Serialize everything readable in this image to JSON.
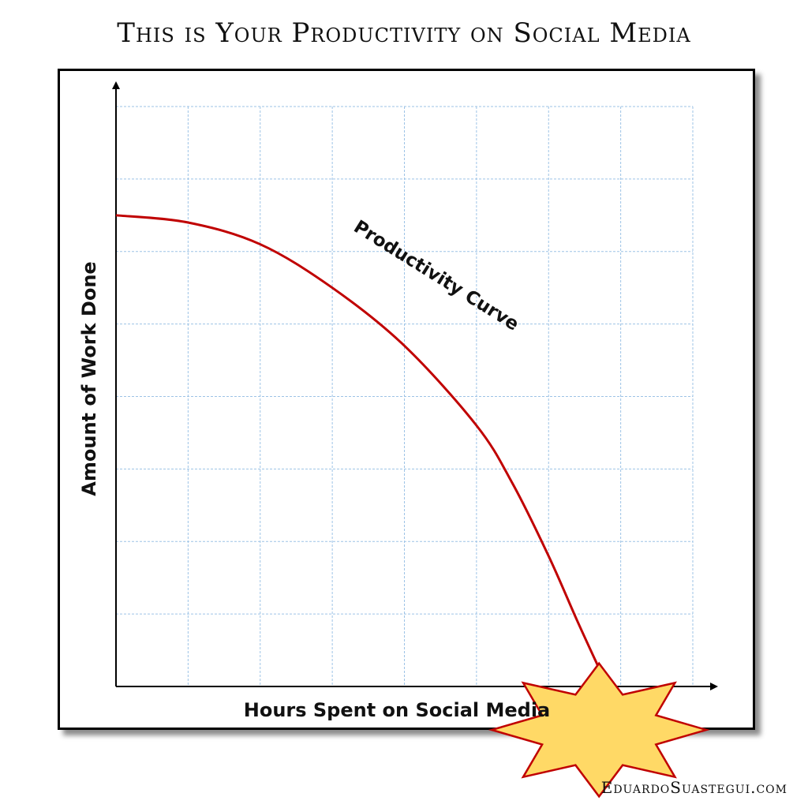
{
  "title": "This is Your Productivity on Social Media",
  "credit": "EduardoSuastegui.com",
  "chart_data": {
    "type": "line",
    "title": "This is Your Productivity on Social Media",
    "xlabel": "Hours Spent on Social Media",
    "ylabel": "Amount of Work Done",
    "grid": true,
    "tick_labels": false,
    "xlim": [
      0,
      8
    ],
    "ylim": [
      0,
      8
    ],
    "series": [
      {
        "name": "Productivity Curve",
        "x": [
          0,
          1,
          2,
          3,
          4,
          5,
          5.5,
          6,
          6.4,
          6.7
        ],
        "y": [
          6.5,
          6.4,
          6.1,
          5.5,
          4.7,
          3.6,
          2.8,
          1.8,
          0.9,
          0.25
        ]
      }
    ],
    "annotations": [
      {
        "text": "Productivity Curve",
        "x": 4.4,
        "y": 5.6
      }
    ],
    "burst": {
      "x": 6.7,
      "y": 0.25
    },
    "colors": {
      "curve": "#c00000",
      "grid": "#9dc3e6",
      "burst_fill": "#ffd966",
      "burst_stroke": "#c00000"
    }
  }
}
